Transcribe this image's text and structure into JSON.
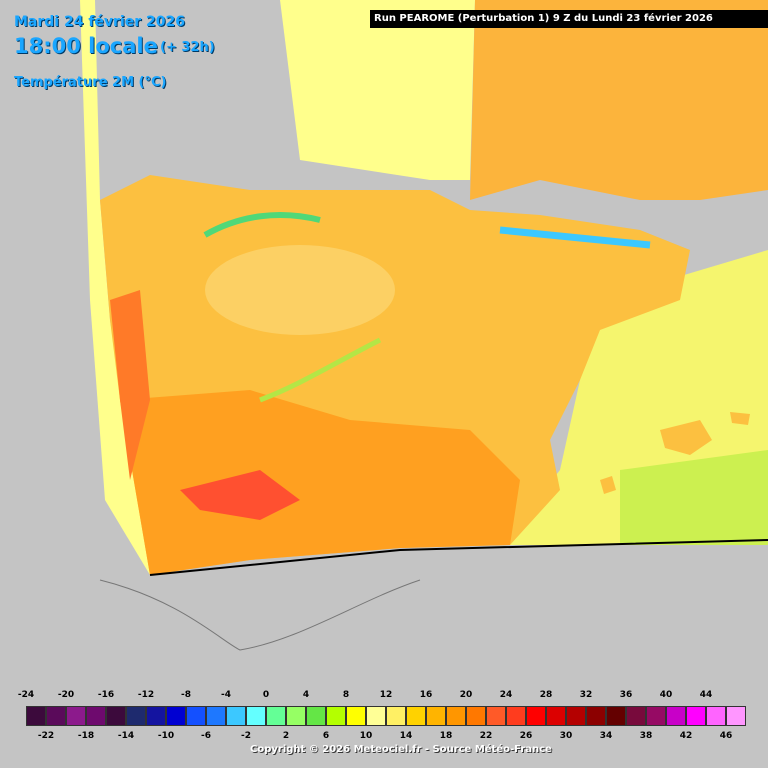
{
  "header": {
    "date": "Mardi 24 février 2026",
    "time": "18:00 locale",
    "offset": "(+ 32h)",
    "variable": "Température 2M (°C)"
  },
  "run_info": "Run PEAROME (Perturbation 1) 9 Z du Lundi 23 février 2026",
  "colors": {
    "background": "#c4c4c4",
    "sea_warm": "#f5f56e",
    "land_base": "#fcc040",
    "header_text": "#1aa6ff"
  },
  "legend": {
    "top_labels": [
      "-24",
      "-20",
      "-16",
      "-12",
      "-8",
      "-4",
      "0",
      "4",
      "8",
      "12",
      "16",
      "20",
      "24",
      "28",
      "32",
      "36",
      "40",
      "44"
    ],
    "bottom_labels": [
      "-22",
      "-18",
      "-14",
      "-10",
      "-6",
      "-2",
      "2",
      "6",
      "10",
      "14",
      "18",
      "22",
      "26",
      "30",
      "34",
      "38",
      "42",
      "46"
    ],
    "colors": [
      "#3c0a3c",
      "#5a0a5a",
      "#8c1a8c",
      "#6e0a6e",
      "#3c0a3c",
      "#1e2a6e",
      "#1414a0",
      "#0000d2",
      "#1450ff",
      "#1e78ff",
      "#3cc8ff",
      "#64ffff",
      "#64ff96",
      "#96ff64",
      "#64e646",
      "#b4ff00",
      "#ffff00",
      "#ffff96",
      "#fff064",
      "#ffd200",
      "#ffb400",
      "#ff9600",
      "#ff7800",
      "#ff5a28",
      "#ff3c1e",
      "#ff0000",
      "#dc0000",
      "#b40000",
      "#8c0000",
      "#640000",
      "#780a3c",
      "#960a64",
      "#c800c8",
      "#ff00ff",
      "#ff64ff",
      "#ff96ff"
    ]
  },
  "copyright": "Copyright © 2026 Meteociel.fr - Source Météo-France"
}
